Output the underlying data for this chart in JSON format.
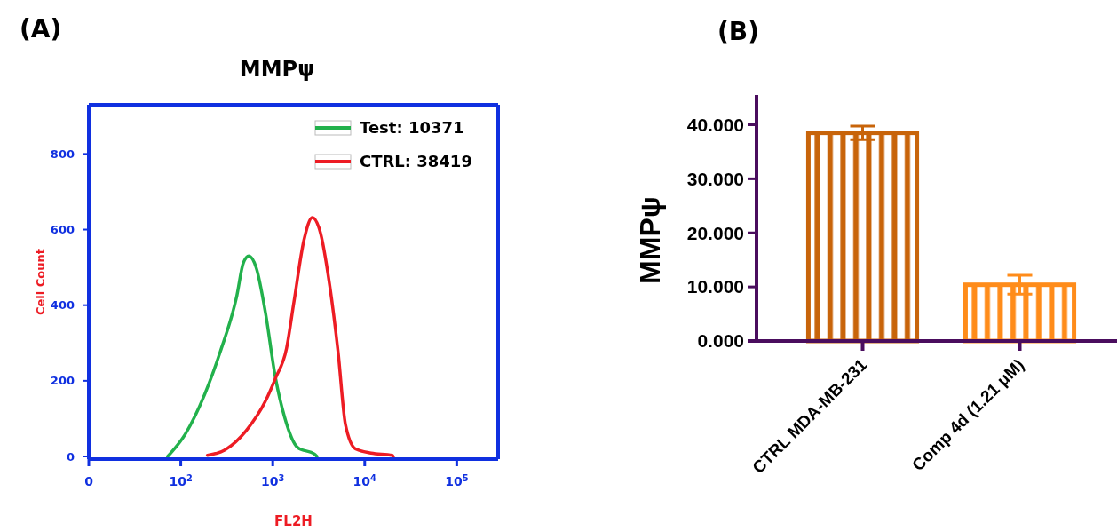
{
  "chart_data": [
    {
      "type": "line",
      "title": "MMPψ",
      "xlabel": "FL2H",
      "ylabel": "Cell Count",
      "log": "x",
      "xlim": [
        0,
        282000
      ],
      "ylim": [
        -7,
        930
      ],
      "xticks": [
        0,
        {
          "value": 100,
          "label": "10$^{2}$"
        },
        {
          "value": 1000,
          "label": "10$^{3}$"
        },
        {
          "value": 10000,
          "label": "10$^{4}$"
        },
        {
          "value": 100000,
          "label": "10$^{5}$"
        }
      ],
      "yticks": [
        0,
        200,
        400,
        600,
        800
      ],
      "legend": "top right",
      "annotations": [
        "(A)"
      ],
      "series": [
        {
          "name": "Test: 10371",
          "color": "#22b14c",
          "x": [
            72,
            112,
            182,
            269,
            407,
            479,
            550,
            661,
            832,
            1072,
            1349,
            1862,
            2884,
            3020
          ],
          "values": [
            0,
            59,
            164,
            277,
            425,
            512,
            530,
            499,
            381,
            207,
            103,
            24,
            5,
            0
          ]
        },
        {
          "name": "CTRL: 38419",
          "color": "#ed1c24",
          "x": [
            195,
            295,
            513,
            832,
            1072,
            1413,
            1698,
            2188,
            2692,
            3236,
            4169,
            5129,
            6166,
            7943,
            11749,
            19953,
            20417
          ],
          "values": [
            3,
            16,
            68,
            146,
            207,
            286,
            408,
            573,
            632,
            599,
            451,
            277,
            85,
            20,
            9,
            3,
            0
          ]
        }
      ]
    },
    {
      "type": "bar",
      "ylabel": "MMPψ",
      "categories": [
        "CTRL MDA-MB-231",
        "Comp 4d (1.21 μM)"
      ],
      "values": [
        38.5,
        10.4
      ],
      "colors": [
        "#c8640a",
        "#ff8c1a"
      ],
      "errors": [
        1.25,
        1.75
      ],
      "ylim": [
        0,
        45.5
      ],
      "yticks": [
        {
          "value": 0,
          "label": "0.000"
        },
        {
          "value": 10,
          "label": "10.000"
        },
        {
          "value": 20,
          "label": "20.000"
        },
        {
          "value": 30,
          "label": "30.000"
        },
        {
          "value": 40,
          "label": "40.000"
        }
      ],
      "annotations": [
        "(B)"
      ]
    }
  ]
}
